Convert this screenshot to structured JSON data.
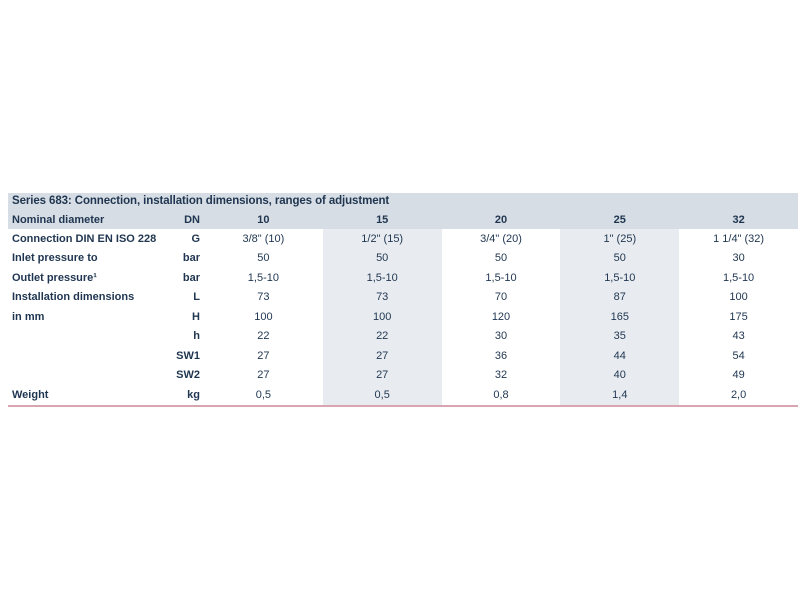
{
  "title": "Series 683: Connection, installation dimensions, ranges of adjustment",
  "rows": [
    {
      "label": "Nominal diameter",
      "unit": "DN",
      "values": [
        "10",
        "15",
        "20",
        "25",
        "32"
      ]
    },
    {
      "label": "Connection DIN EN ISO 228",
      "unit": "G",
      "values": [
        "3/8\" (10)",
        "1/2\" (15)",
        "3/4\" (20)",
        "1\" (25)",
        "1 1/4\" (32)"
      ]
    },
    {
      "label": "Inlet pressure to",
      "unit": "bar",
      "values": [
        "50",
        "50",
        "50",
        "50",
        "30"
      ]
    },
    {
      "label": "Outlet pressure¹",
      "unit": "bar",
      "values": [
        "1,5-10",
        "1,5-10",
        "1,5-10",
        "1,5-10",
        "1,5-10"
      ]
    },
    {
      "label": "Installation dimensions",
      "unit": "L",
      "values": [
        "73",
        "73",
        "70",
        "87",
        "100"
      ]
    },
    {
      "label": "in mm",
      "unit": "H",
      "values": [
        "100",
        "100",
        "120",
        "165",
        "175"
      ]
    },
    {
      "label": "",
      "unit": "h",
      "values": [
        "22",
        "22",
        "30",
        "35",
        "43"
      ]
    },
    {
      "label": "",
      "unit": "SW1",
      "values": [
        "27",
        "27",
        "36",
        "44",
        "54"
      ]
    },
    {
      "label": "",
      "unit": "SW2",
      "values": [
        "27",
        "27",
        "32",
        "40",
        "49"
      ]
    },
    {
      "label": "Weight",
      "unit": "kg",
      "values": [
        "0,5",
        "0,5",
        "0,8",
        "1,4",
        "2,0"
      ]
    }
  ],
  "colors": {
    "header_bg": "#d6dde4",
    "shade_bg": "#e8ecf0",
    "text": "#1f3550",
    "rule": "#d7a6b0"
  }
}
